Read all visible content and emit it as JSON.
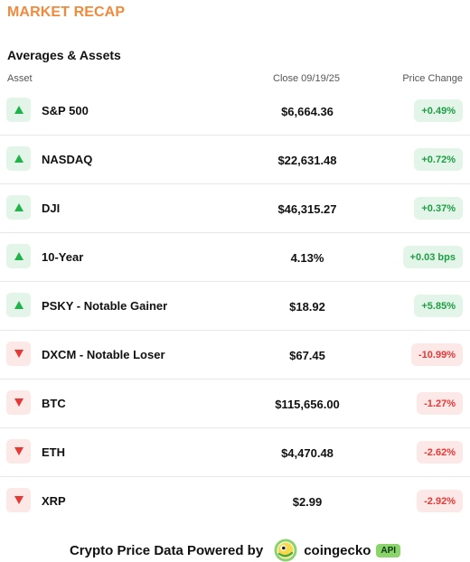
{
  "header": {
    "title": "MARKET RECAP",
    "section_title": "Averages & Assets"
  },
  "columns": {
    "asset": "Asset",
    "close": "Close 09/19/25",
    "change": "Price Change"
  },
  "rows": [
    {
      "name": "S&P 500",
      "close": "$6,664.36",
      "change": "+0.49%",
      "direction": "up"
    },
    {
      "name": "NASDAQ",
      "close": "$22,631.48",
      "change": "+0.72%",
      "direction": "up"
    },
    {
      "name": "DJI",
      "close": "$46,315.27",
      "change": "+0.37%",
      "direction": "up"
    },
    {
      "name": "10-Year",
      "close": "4.13%",
      "change": "+0.03 bps",
      "direction": "up"
    },
    {
      "name": "PSKY - Notable Gainer",
      "close": "$18.92",
      "change": "+5.85%",
      "direction": "up"
    },
    {
      "name": "DXCM - Notable Loser",
      "close": "$67.45",
      "change": "-10.99%",
      "direction": "down"
    },
    {
      "name": "BTC",
      "close": "$115,656.00",
      "change": "-1.27%",
      "direction": "down"
    },
    {
      "name": "ETH",
      "close": "$4,470.48",
      "change": "-2.62%",
      "direction": "down"
    },
    {
      "name": "XRP",
      "close": "$2.99",
      "change": "-2.92%",
      "direction": "down"
    }
  ],
  "footer": {
    "powered_by": "Crypto Price Data Powered by",
    "brand": "coingecko",
    "api_label": "API",
    "logo_icon": "gecko-logo-icon"
  },
  "colors": {
    "title_orange": "#f08a3c",
    "up_green": "#22b24c",
    "up_bg": "#e3f5e8",
    "down_red": "#e53935",
    "down_bg": "#fde8e8",
    "api_green": "#8bd36b"
  }
}
